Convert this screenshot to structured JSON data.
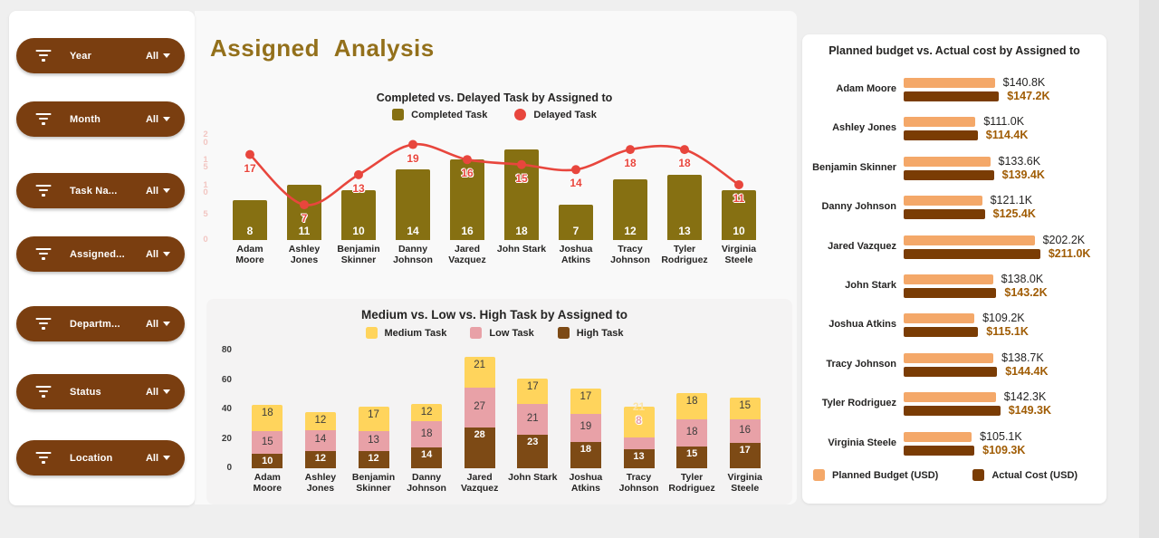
{
  "page": {
    "title": "Assigned  Analysis"
  },
  "sidebar": {
    "filters": [
      {
        "label": "Year",
        "value": "All"
      },
      {
        "label": "Month",
        "value": "All"
      },
      {
        "label": "Task Na...",
        "value": "All"
      },
      {
        "label": "Assigned...",
        "value": "All"
      },
      {
        "label": "Departm...",
        "value": "All"
      },
      {
        "label": "Status",
        "value": "All"
      },
      {
        "label": "Location",
        "value": "All"
      }
    ]
  },
  "chart_data": [
    {
      "type": "combo-bar-line",
      "title": "Completed vs. Delayed Task by Assigned to",
      "categories": [
        "Adam Moore",
        "Ashley Jones",
        "Benjamin Skinner",
        "Danny Johnson",
        "Jared Vazquez",
        "John Stark",
        "Joshua Atkins",
        "Tracy Johnson",
        "Tyler Rodriguez",
        "Virginia Steele"
      ],
      "series": [
        {
          "name": "Completed Task",
          "type": "bar",
          "color": "#867012",
          "values": [
            8,
            11,
            10,
            14,
            16,
            18,
            7,
            12,
            13,
            10
          ]
        },
        {
          "name": "Delayed Task",
          "type": "line",
          "color": "#e8463d",
          "values": [
            17,
            7,
            13,
            19,
            16,
            15,
            14,
            18,
            18,
            11
          ]
        }
      ],
      "ylim": [
        0,
        20
      ],
      "yticks": [
        "20",
        "15",
        "10",
        "5",
        "0"
      ],
      "grid": false,
      "legend_position": "top"
    },
    {
      "type": "stacked-bar",
      "title": "Medium vs. Low vs. High Task by Assigned to",
      "categories": [
        "Adam Moore",
        "Ashley Jones",
        "Benjamin Skinner",
        "Danny Johnson",
        "Jared Vazquez",
        "John Stark",
        "Joshua Atkins",
        "Tracy Johnson",
        "Tyler Rodriguez",
        "Virginia Steele"
      ],
      "series": [
        {
          "name": "Medium Task",
          "color": "#ffd45c",
          "values": [
            18,
            12,
            17,
            12,
            21,
            17,
            17,
            21,
            18,
            15
          ]
        },
        {
          "name": "Low Task",
          "color": "#e8a1a7",
          "values": [
            15,
            14,
            13,
            18,
            27,
            21,
            19,
            8,
            18,
            16
          ]
        },
        {
          "name": "High Task",
          "color": "#7d4a15",
          "values": [
            10,
            12,
            12,
            14,
            28,
            23,
            18,
            13,
            15,
            17
          ]
        }
      ],
      "ylim": [
        0,
        80
      ],
      "yticks": [
        "80",
        "60",
        "40",
        "20",
        "0"
      ],
      "grid": false,
      "legend_position": "top"
    },
    {
      "type": "bar-horizontal-pair",
      "title": "Planned budget vs. Actual cost by Assigned to",
      "categories": [
        "Adam Moore",
        "Ashley Jones",
        "Benjamin Skinner",
        "Danny Johnson",
        "Jared Vazquez",
        "John Stark",
        "Joshua Atkins",
        "Tracy Johnson",
        "Tyler Rodriguez",
        "Virginia Steele"
      ],
      "series": [
        {
          "name": "Planned Budget (USD)",
          "color": "#f4a869",
          "values": [
            140.8,
            111.0,
            133.6,
            121.1,
            202.2,
            138.0,
            109.2,
            138.7,
            142.3,
            105.1
          ],
          "labels": [
            "$140.8K",
            "$111.0K",
            "$133.6K",
            "$121.1K",
            "$202.2K",
            "$138.0K",
            "$109.2K",
            "$138.7K",
            "$142.3K",
            "$105.1K"
          ]
        },
        {
          "name": "Actual Cost (USD)",
          "color": "#7a3c04",
          "values": [
            147.2,
            114.4,
            139.4,
            125.4,
            211.0,
            143.2,
            115.1,
            144.4,
            149.3,
            109.3
          ],
          "labels": [
            "$147.2K",
            "$114.4K",
            "$139.4K",
            "$125.4K",
            "$211.0K",
            "$143.2K",
            "$115.1K",
            "$144.4K",
            "$149.3K",
            "$109.3K"
          ]
        }
      ],
      "legend_position": "bottom",
      "value_label_colors": {
        "planned": "#252423",
        "actual": "#a05c04"
      }
    }
  ]
}
